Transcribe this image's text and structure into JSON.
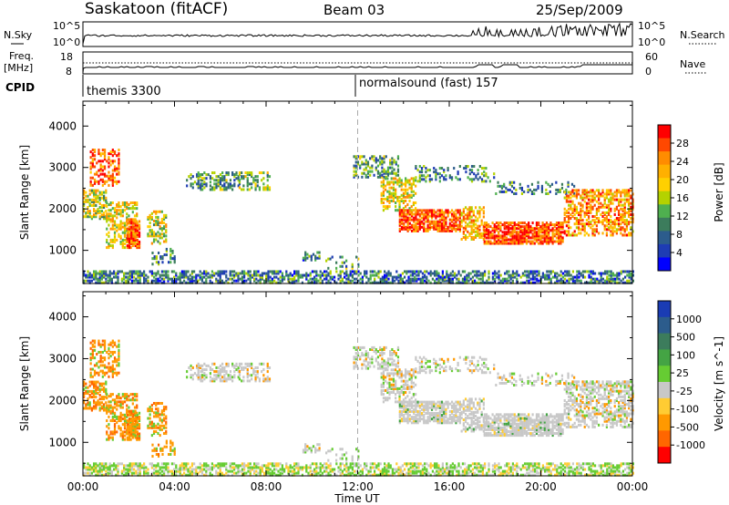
{
  "header": {
    "station": "Saskatoon (fitACF)",
    "beam": "Beam 03",
    "date": "25/Sep/2009"
  },
  "noise_panel": {
    "left_label": "N.Sky",
    "right_label": "N.Search",
    "right_line_style": "dotted",
    "left_ticks": [
      "10^5",
      "10^0"
    ],
    "right_ticks": [
      "10^5",
      "10^0"
    ]
  },
  "freq_panel": {
    "left_label_line1": "Freq.",
    "left_label_line2": "[MHz]",
    "left_ticks": [
      "18",
      "8"
    ],
    "right_label": "Nave",
    "right_line_style": "dotted",
    "right_ticks": [
      "60",
      "0"
    ]
  },
  "cpid_panel": {
    "label": "CPID",
    "segments": [
      {
        "text": "themis 3300",
        "start_hour": 0
      },
      {
        "text": "normalsound (fast) 157",
        "start_hour": 12
      }
    ]
  },
  "time_axis": {
    "label": "Time UT",
    "ticks": [
      "00:00",
      "04:00",
      "08:00",
      "12:00",
      "16:00",
      "20:00",
      "00:00"
    ],
    "tick_hours": [
      0,
      4,
      8,
      12,
      16,
      20,
      24
    ]
  },
  "chart_data": [
    {
      "type": "heatmap",
      "name": "power",
      "xlabel": "Time UT",
      "ylabel": "Slant Range [km]",
      "xlim_hours": [
        0,
        24
      ],
      "ylim_km": [
        200,
        4600
      ],
      "y_ticks": [
        "4000",
        "3000",
        "2000",
        "1000"
      ],
      "y_tick_values": [
        4000,
        3000,
        2000,
        1000
      ],
      "colorbar": {
        "label": "Power [dB]",
        "ticks": [
          "28",
          "24",
          "20",
          "16",
          "12",
          "8",
          "4"
        ],
        "range": [
          0,
          30
        ],
        "colors_high_to_low": [
          "#ff0000",
          "#ff4800",
          "#ff8c00",
          "#ffb000",
          "#ffd000",
          "#b4d200",
          "#4fb04f",
          "#3c7c5c",
          "#2c5c8c",
          "#1e3cb4",
          "#0000ff"
        ]
      }
    },
    {
      "type": "heatmap",
      "name": "velocity",
      "xlabel": "Time UT",
      "ylabel": "Slant Range [km]",
      "xlim_hours": [
        0,
        24
      ],
      "ylim_km": [
        200,
        4600
      ],
      "y_ticks": [
        "4000",
        "3000",
        "2000",
        "1000"
      ],
      "y_tick_values": [
        4000,
        3000,
        2000,
        1000
      ],
      "colorbar": {
        "label": "Velocity [m s^-1]",
        "ticks": [
          "1000",
          "500",
          "100",
          "25",
          "-25",
          "-100",
          "-500",
          "-1000"
        ],
        "colors_high_to_low": [
          "#1a3cb4",
          "#2c5c8c",
          "#3c7c5c",
          "#44a444",
          "#66cc33",
          "#c8c8c8",
          "#ffcc33",
          "#ff9900",
          "#ff6600",
          "#ff0000"
        ]
      }
    }
  ]
}
